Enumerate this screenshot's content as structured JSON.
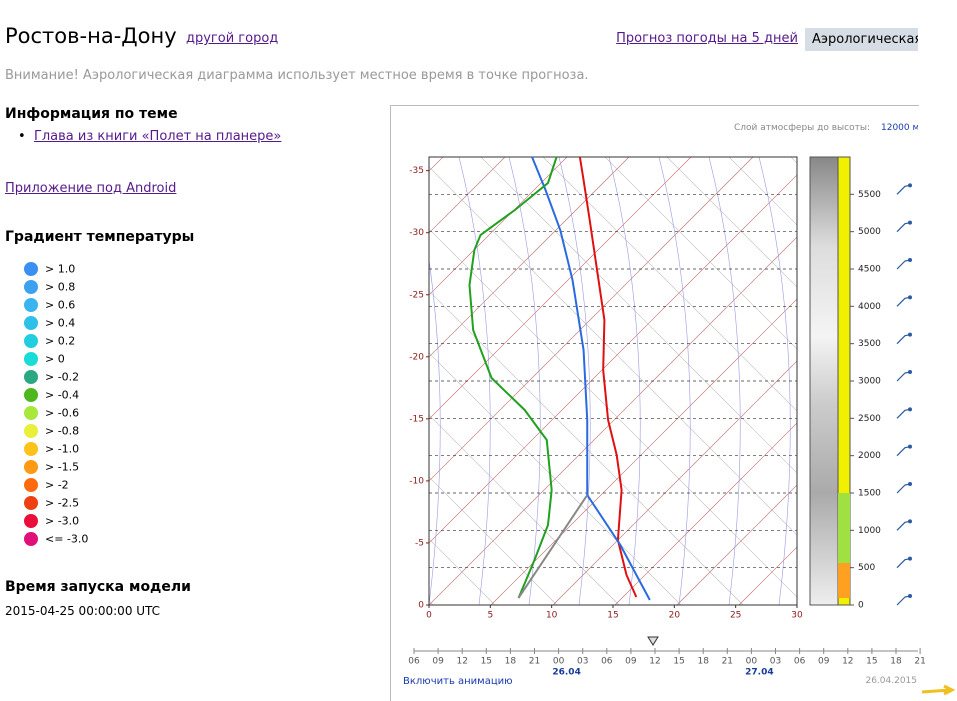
{
  "header": {
    "city": "Ростов-на-Дону",
    "change_city": "другой город",
    "tabs": [
      "Прогноз погоды на 5 дней",
      "Аэрологическая"
    ]
  },
  "notice": "Внимание! Аэрологическая диаграмма использует местное время в точке прогноза.",
  "sidebar": {
    "info_title": "Информация по теме",
    "info_links": [
      "Глава из книги «Полет на планере»"
    ],
    "android_link": "Приложение под Android",
    "gradient_title": "Градиент температуры",
    "gradient_legend": [
      {
        "label": "> 1.0",
        "color": "#3b8ff0"
      },
      {
        "label": "> 0.8",
        "color": "#3da0f0"
      },
      {
        "label": "> 0.6",
        "color": "#3ab4ee"
      },
      {
        "label": "> 0.4",
        "color": "#2ec0e8"
      },
      {
        "label": "> 0.2",
        "color": "#22cde0"
      },
      {
        "label": "> 0",
        "color": "#19dcd8"
      },
      {
        "label": "> -0.2",
        "color": "#2aa884"
      },
      {
        "label": "> -0.4",
        "color": "#4cb81c"
      },
      {
        "label": "> -0.6",
        "color": "#a8e83a"
      },
      {
        "label": "> -0.8",
        "color": "#e8f03a"
      },
      {
        "label": "> -1.0",
        "color": "#ffc21a"
      },
      {
        "label": "> -1.5",
        "color": "#ff9a14"
      },
      {
        "label": "> -2",
        "color": "#ff6a10"
      },
      {
        "label": "> -2.5",
        "color": "#ee4010"
      },
      {
        "label": "> -3.0",
        "color": "#e8103a"
      },
      {
        "label": "<= -3.0",
        "color": "#e0107a"
      }
    ],
    "model_title": "Время запуска модели",
    "model_time": "2015-04-25 00:00:00 UTC"
  },
  "chart_data": {
    "type": "line",
    "layer_label": "Слой атмосферы до высоты:",
    "layer_value": "12000 м",
    "xlim": [
      0,
      30
    ],
    "xticks": [
      0,
      5,
      10,
      15,
      20,
      25,
      30
    ],
    "ylim": [
      0,
      6000
    ],
    "yticks": [
      0,
      500,
      1000,
      1500,
      2000,
      2500,
      3000,
      3500,
      4000,
      4500,
      5000,
      5500
    ],
    "y2lim": [
      0,
      -36.1
    ],
    "y2ticks": [
      0,
      -5,
      -10,
      -15,
      -20,
      -25,
      -30,
      -35
    ],
    "grid": true,
    "series": [
      {
        "color": "#e01010",
        "x": [
          16.9,
          16.1,
          15.4,
          15.7,
          15.3,
          14.6,
          14.2,
          14.3,
          13.7,
          13.1,
          12.6,
          12.3
        ],
        "values": [
          107,
          402,
          870,
          1540,
          2009,
          2478,
          3147,
          3817,
          4486,
          5156,
          5692,
          6000
        ]
      },
      {
        "color": "#2a6ae0",
        "x": [
          18.0,
          15.6,
          12.9,
          12.9,
          12.6,
          11.7,
          10.7,
          9.5,
          8.4
        ],
        "values": [
          67,
          804,
          1473,
          2478,
          3415,
          4352,
          5022,
          5558,
          6000
        ]
      },
      {
        "color": "#22a020",
        "x": [
          7.3,
          8.6,
          9.7,
          10.0,
          9.6,
          7.8,
          5.1,
          3.6,
          3.3,
          3.7,
          4.2,
          7.0,
          9.7,
          10.4
        ],
        "values": [
          94,
          603,
          1071,
          1540,
          2210,
          2612,
          3040,
          3683,
          4285,
          4754,
          4955,
          5290,
          5652,
          6000
        ]
      },
      {
        "color": "#888888",
        "x": [
          7.3,
          12.9
        ],
        "values": [
          94,
          1473
        ]
      }
    ]
  },
  "timeline": {
    "hours": [
      "06",
      "09",
      "12",
      "15",
      "18",
      "21",
      "00",
      "03",
      "06",
      "09",
      "12",
      "15",
      "18",
      "21",
      "00",
      "03",
      "06",
      "09",
      "12",
      "15",
      "18",
      "21"
    ],
    "dates": [
      "26.04",
      "27.04"
    ],
    "animation_link": "Включить анимацию",
    "current_date": "26.04.2015"
  }
}
